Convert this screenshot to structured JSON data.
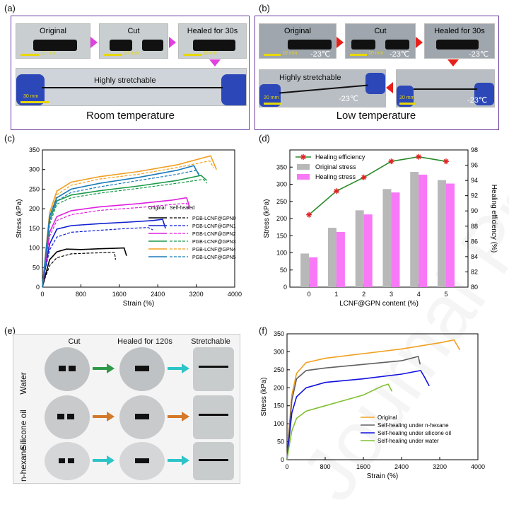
{
  "panels": {
    "a": "(a)",
    "b": "(b)",
    "c": "(c)",
    "d": "(d)",
    "e": "(e)",
    "f": "(f)"
  },
  "panel_a": {
    "photos": [
      "Original",
      "Cut",
      "Healed for 30s"
    ],
    "scale": "10 mm",
    "stretch_text": "Highly stretchable",
    "stretch_scale": "30 mm",
    "caption": "Room temperature",
    "arrow_color": "#e040e0"
  },
  "panel_b": {
    "photos": [
      "Original",
      "Cut",
      "Healed for 30s"
    ],
    "scale": "10 mm",
    "temp": "-23℃",
    "stretch_text": "Highly stretchable",
    "stretch_scale": "20 mm",
    "caption": "Low temperature",
    "arrow_color": "#e8201a"
  },
  "panel_e": {
    "headers": [
      "Cut",
      "Healed for 120s",
      "Stretchable"
    ],
    "rows": [
      "Water",
      "Silicone oil",
      "n-hexane"
    ],
    "arrow_colors": [
      "#2e9a48",
      "#d4782a",
      "#2cc4c8"
    ]
  },
  "chart_data": [
    {
      "id": "c",
      "type": "line",
      "xlabel": "Strain (%)",
      "ylabel": "Stress (kPa)",
      "xlim": [
        0,
        4000
      ],
      "ylim": [
        0,
        350
      ],
      "xticks": [
        0,
        800,
        1600,
        2400,
        3200,
        4000
      ],
      "yticks": [
        0,
        50,
        100,
        150,
        200,
        250,
        300,
        350
      ],
      "legend_header": [
        "Original",
        "Self-healed"
      ],
      "series": [
        {
          "name": "PGB-LCNF@GPN0",
          "color": "#000000",
          "original": [
            [
              0,
              0
            ],
            [
              60,
              30
            ],
            [
              150,
              70
            ],
            [
              300,
              90
            ],
            [
              500,
              97
            ],
            [
              800,
              96
            ],
            [
              1200,
              98
            ],
            [
              1500,
              99
            ],
            [
              1700,
              100
            ],
            [
              1750,
              80
            ]
          ],
          "healed": [
            [
              0,
              0
            ],
            [
              60,
              25
            ],
            [
              150,
              55
            ],
            [
              300,
              75
            ],
            [
              600,
              85
            ],
            [
              1000,
              87
            ],
            [
              1300,
              88
            ],
            [
              1500,
              89
            ],
            [
              1520,
              70
            ]
          ]
        },
        {
          "name": "PGB-LCNF@GPN1",
          "color": "#1020d0",
          "original": [
            [
              0,
              0
            ],
            [
              60,
              50
            ],
            [
              150,
              110
            ],
            [
              300,
              148
            ],
            [
              600,
              157
            ],
            [
              1200,
              162
            ],
            [
              1800,
              166
            ],
            [
              2300,
              170
            ],
            [
              2500,
              173
            ],
            [
              2560,
              150
            ]
          ],
          "healed": [
            [
              0,
              0
            ],
            [
              60,
              45
            ],
            [
              150,
              95
            ],
            [
              300,
              128
            ],
            [
              600,
              140
            ],
            [
              1200,
              145
            ],
            [
              1800,
              150
            ],
            [
              2200,
              152
            ],
            [
              2300,
              146
            ]
          ]
        },
        {
          "name": "PGB-LCNF@GPN2",
          "color": "#e020e0",
          "original": [
            [
              0,
              0
            ],
            [
              60,
              60
            ],
            [
              150,
              140
            ],
            [
              300,
              180
            ],
            [
              600,
              195
            ],
            [
              1200,
              205
            ],
            [
              2000,
              213
            ],
            [
              2700,
              222
            ],
            [
              3000,
              228
            ],
            [
              3060,
              205
            ]
          ],
          "healed": [
            [
              0,
              0
            ],
            [
              60,
              55
            ],
            [
              150,
              130
            ],
            [
              300,
              170
            ],
            [
              600,
              185
            ],
            [
              1200,
              196
            ],
            [
              2000,
              203
            ],
            [
              2800,
              212
            ],
            [
              3000,
              214
            ],
            [
              3040,
              200
            ]
          ]
        },
        {
          "name": "PGB-LCNF@GPN3",
          "color": "#1d9a4a",
          "original": [
            [
              0,
              0
            ],
            [
              60,
              70
            ],
            [
              150,
              170
            ],
            [
              300,
              220
            ],
            [
              600,
              235
            ],
            [
              1200,
              246
            ],
            [
              2000,
              258
            ],
            [
              2800,
              272
            ],
            [
              3300,
              285
            ],
            [
              3420,
              272
            ]
          ],
          "healed": [
            [
              0,
              0
            ],
            [
              60,
              65
            ],
            [
              150,
              160
            ],
            [
              300,
              212
            ],
            [
              600,
              228
            ],
            [
              1200,
              240
            ],
            [
              2000,
              252
            ],
            [
              2800,
              265
            ],
            [
              3350,
              275
            ],
            [
              3420,
              265
            ]
          ]
        },
        {
          "name": "PGB-LCNF@GPN4",
          "color": "#f0a020",
          "original": [
            [
              0,
              0
            ],
            [
              60,
              80
            ],
            [
              150,
              190
            ],
            [
              300,
              245
            ],
            [
              600,
              268
            ],
            [
              1200,
              282
            ],
            [
              2000,
              295
            ],
            [
              2800,
              312
            ],
            [
              3500,
              335
            ],
            [
              3620,
              300
            ]
          ],
          "healed": [
            [
              0,
              0
            ],
            [
              60,
              75
            ],
            [
              150,
              180
            ],
            [
              300,
              236
            ],
            [
              600,
              260
            ],
            [
              1200,
              276
            ],
            [
              2000,
              288
            ],
            [
              2800,
              305
            ],
            [
              3480,
              322
            ],
            [
              3560,
              305
            ]
          ]
        },
        {
          "name": "PGB-LCNF@GPN5",
          "color": "#1a7ab8",
          "original": [
            [
              0,
              0
            ],
            [
              60,
              75
            ],
            [
              150,
              180
            ],
            [
              300,
              228
            ],
            [
              600,
              250
            ],
            [
              1200,
              265
            ],
            [
              2000,
              280
            ],
            [
              2800,
              298
            ],
            [
              3150,
              310
            ],
            [
              3260,
              285
            ]
          ],
          "healed": [
            [
              0,
              0
            ],
            [
              60,
              70
            ],
            [
              150,
              170
            ],
            [
              300,
              220
            ],
            [
              600,
              242
            ],
            [
              1200,
              256
            ],
            [
              2000,
              272
            ],
            [
              2800,
              288
            ],
            [
              3200,
              298
            ],
            [
              3280,
              285
            ]
          ]
        }
      ]
    },
    {
      "id": "d",
      "type": "bar",
      "xlabel": "LCNF@GPN content (%)",
      "ylabel": "Stress (kPa)",
      "y2label": "Healing efficiency (%)",
      "categories": [
        "0",
        "1",
        "2",
        "3",
        "4",
        "5"
      ],
      "ylim": [
        0,
        400
      ],
      "yticks": [
        0,
        50,
        100,
        150,
        200,
        250,
        300,
        350
      ],
      "y2lim": [
        80,
        98
      ],
      "y2ticks": [
        80,
        82,
        84,
        86,
        88,
        90,
        92,
        94,
        96,
        98
      ],
      "series": [
        {
          "name": "Original stress",
          "color": "#b8b8b8",
          "values": [
            98,
            173,
            224,
            286,
            336,
            312
          ]
        },
        {
          "name": "Healing stress",
          "color": "#f878f8",
          "values": [
            87,
            161,
            212,
            276,
            328,
            302
          ]
        },
        {
          "name": "Healing efficiency",
          "color": "#2a8a2a",
          "marker_color": "#e02020",
          "values": [
            89.5,
            92.6,
            94.4,
            96.5,
            97.1,
            96.5
          ]
        }
      ]
    },
    {
      "id": "f",
      "type": "line",
      "xlabel": "Strain (%)",
      "ylabel": "Stress (kPa)",
      "xlim": [
        0,
        4000
      ],
      "ylim": [
        0,
        350
      ],
      "xticks": [
        0,
        800,
        1600,
        2400,
        3200,
        4000
      ],
      "yticks": [
        0,
        50,
        100,
        150,
        200,
        250,
        300,
        350
      ],
      "series": [
        {
          "name": "Original",
          "color": "#f0a020",
          "points": [
            [
              0,
              0
            ],
            [
              40,
              80
            ],
            [
              100,
              180
            ],
            [
              200,
              240
            ],
            [
              400,
              270
            ],
            [
              800,
              282
            ],
            [
              1600,
              295
            ],
            [
              2400,
              308
            ],
            [
              3200,
              325
            ],
            [
              3500,
              333
            ],
            [
              3620,
              305
            ]
          ]
        },
        {
          "name": "Self-healing under n-hexane",
          "color": "#606060",
          "points": [
            [
              0,
              0
            ],
            [
              40,
              70
            ],
            [
              100,
              165
            ],
            [
              200,
              225
            ],
            [
              400,
              248
            ],
            [
              800,
              255
            ],
            [
              1600,
              265
            ],
            [
              2400,
              275
            ],
            [
              2750,
              287
            ],
            [
              2790,
              265
            ]
          ]
        },
        {
          "name": "Self-healing under silicone oil",
          "color": "#1010e0",
          "points": [
            [
              0,
              0
            ],
            [
              40,
              55
            ],
            [
              100,
              130
            ],
            [
              200,
              175
            ],
            [
              400,
              200
            ],
            [
              800,
              215
            ],
            [
              1600,
              225
            ],
            [
              2400,
              238
            ],
            [
              2800,
              248
            ],
            [
              2880,
              230
            ],
            [
              2980,
              205
            ]
          ]
        },
        {
          "name": "Self-healing under water",
          "color": "#80c030",
          "points": [
            [
              0,
              0
            ],
            [
              40,
              35
            ],
            [
              100,
              80
            ],
            [
              200,
              115
            ],
            [
              400,
              135
            ],
            [
              800,
              150
            ],
            [
              1200,
              165
            ],
            [
              1600,
              180
            ],
            [
              2000,
              205
            ],
            [
              2120,
              210
            ],
            [
              2200,
              190
            ]
          ]
        }
      ]
    }
  ]
}
